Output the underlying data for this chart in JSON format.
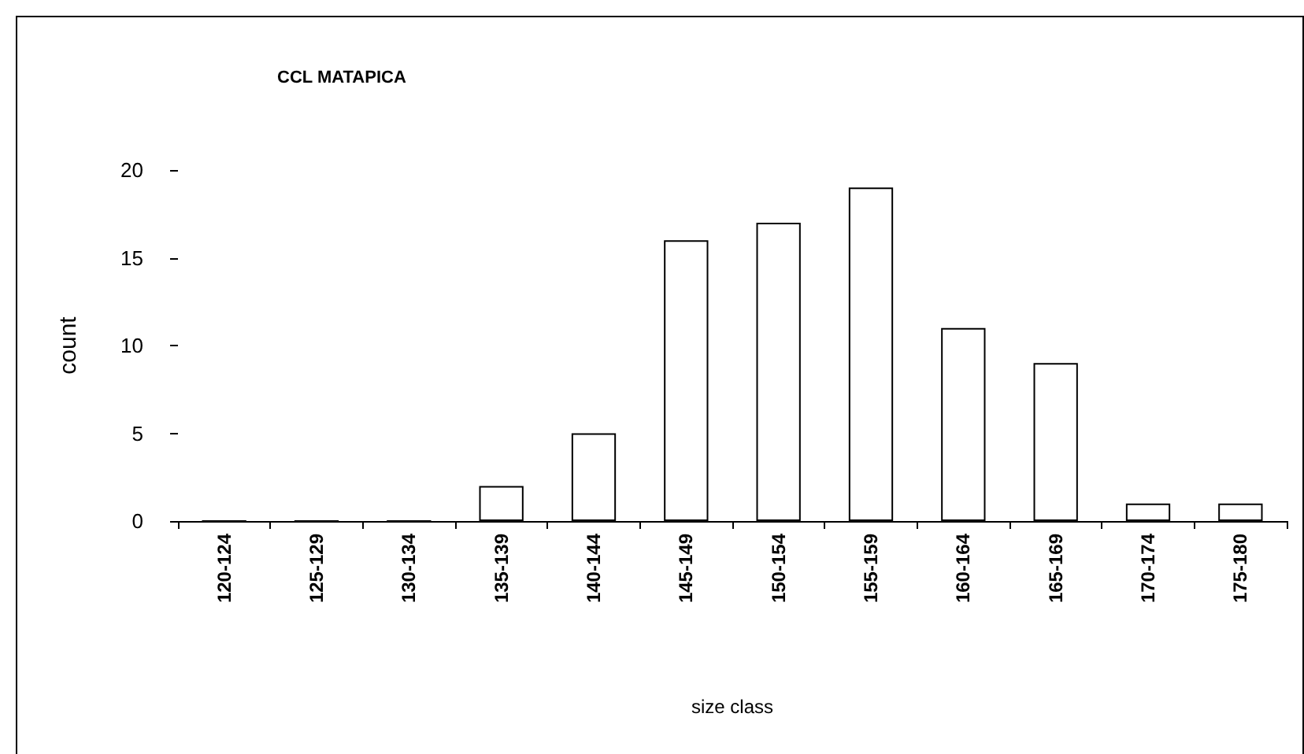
{
  "chart_data": {
    "type": "bar",
    "title": "CCL MATAPICA",
    "xlabel": "size class",
    "ylabel": "count",
    "categories": [
      "120-124",
      "125-129",
      "130-134",
      "135-139",
      "140-144",
      "145-149",
      "150-154",
      "155-159",
      "160-164",
      "165-169",
      "170-174",
      "175-180"
    ],
    "values": [
      0,
      0,
      0,
      2,
      5,
      16,
      17,
      19,
      11,
      9,
      1,
      1
    ],
    "color": "#ffffff",
    "ylim": [
      0,
      20
    ],
    "yticks": [
      0,
      5,
      10,
      15,
      20
    ],
    "grid": false
  }
}
